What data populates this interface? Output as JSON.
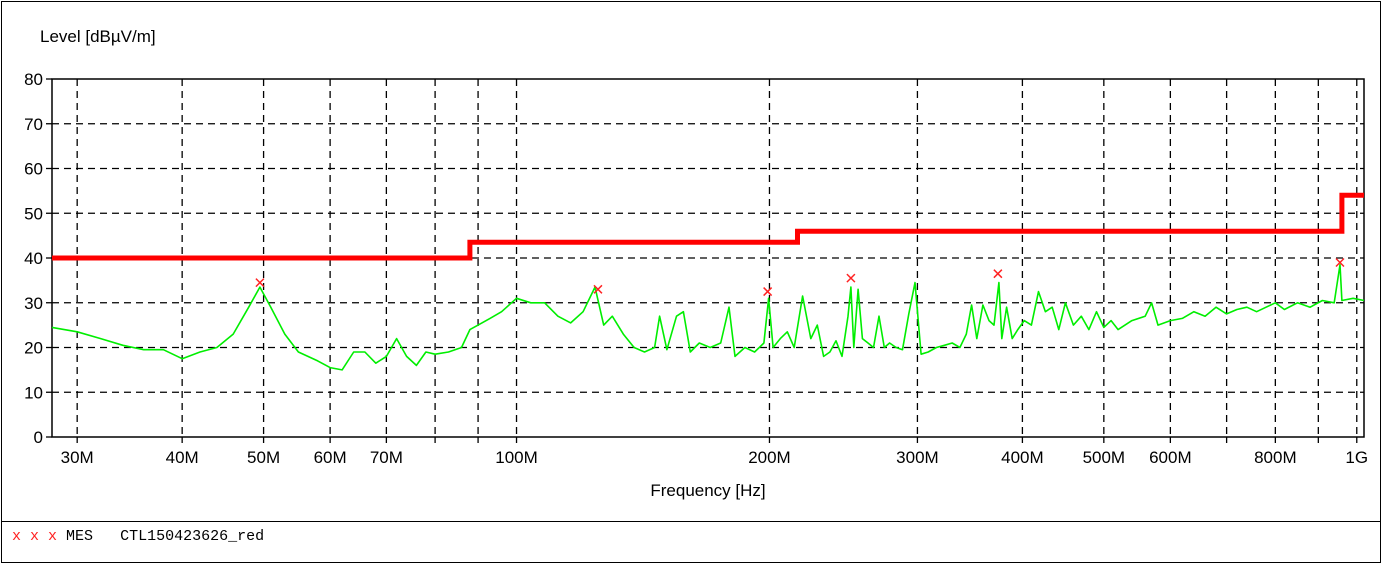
{
  "chart_data": {
    "type": "line",
    "ylabel": "Level [dBµV/m]",
    "xlabel": "Frequency [Hz]",
    "x_scale": "log",
    "xlim": [
      28000000,
      1020000000
    ],
    "ylim": [
      0,
      80
    ],
    "grid": true,
    "y_ticks": [
      "0",
      "10",
      "20",
      "30",
      "40",
      "50",
      "60",
      "70",
      "80"
    ],
    "x_tick_labels": [
      {
        "f": 30000000,
        "label": "30M"
      },
      {
        "f": 40000000,
        "label": "40M"
      },
      {
        "f": 50000000,
        "label": "50M"
      },
      {
        "f": 60000000,
        "label": "60M"
      },
      {
        "f": 70000000,
        "label": "70M"
      },
      {
        "f": 100000000,
        "label": "100M"
      },
      {
        "f": 200000000,
        "label": "200M"
      },
      {
        "f": 300000000,
        "label": "300M"
      },
      {
        "f": 400000000,
        "label": "400M"
      },
      {
        "f": 500000000,
        "label": "500M"
      },
      {
        "f": 600000000,
        "label": "600M"
      },
      {
        "f": 800000000,
        "label": "800M"
      },
      {
        "f": 1000000000,
        "label": "1G"
      }
    ],
    "grid_x": [
      30000000,
      40000000,
      50000000,
      60000000,
      70000000,
      80000000,
      90000000,
      100000000,
      200000000,
      300000000,
      400000000,
      500000000,
      600000000,
      700000000,
      800000000,
      900000000,
      1000000000
    ],
    "colors": {
      "limit": "#ff0000",
      "trace": "#00ee00",
      "markers": "#ff2222"
    },
    "series": [
      {
        "kind": "limit",
        "points": [
          [
            28000000,
            40
          ],
          [
            88000000,
            40
          ],
          [
            88000000,
            43.5
          ],
          [
            216000000,
            43.5
          ],
          [
            216000000,
            46
          ],
          [
            960000000,
            46
          ],
          [
            960000000,
            54
          ],
          [
            1020000000,
            54
          ]
        ]
      },
      {
        "kind": "measurement",
        "points": [
          [
            28000000,
            24.5
          ],
          [
            30000000,
            23.5
          ],
          [
            32000000,
            22
          ],
          [
            34000000,
            20.5
          ],
          [
            36000000,
            19.5
          ],
          [
            38000000,
            19.5
          ],
          [
            40000000,
            17.5
          ],
          [
            42000000,
            19
          ],
          [
            44000000,
            20
          ],
          [
            46000000,
            23
          ],
          [
            48000000,
            29
          ],
          [
            49500000,
            33.5
          ],
          [
            51000000,
            29
          ],
          [
            53000000,
            23
          ],
          [
            55000000,
            19
          ],
          [
            58000000,
            17
          ],
          [
            60000000,
            15.5
          ],
          [
            62000000,
            15
          ],
          [
            64000000,
            19
          ],
          [
            66000000,
            19
          ],
          [
            68000000,
            16.5
          ],
          [
            70000000,
            18
          ],
          [
            72000000,
            22
          ],
          [
            74000000,
            18
          ],
          [
            76000000,
            16
          ],
          [
            78000000,
            19
          ],
          [
            80000000,
            18.5
          ],
          [
            83000000,
            19
          ],
          [
            86000000,
            20
          ],
          [
            88000000,
            24
          ],
          [
            90000000,
            25
          ],
          [
            93000000,
            26.5
          ],
          [
            96000000,
            28
          ],
          [
            100000000,
            31
          ],
          [
            104000000,
            30
          ],
          [
            108000000,
            30
          ],
          [
            112000000,
            27
          ],
          [
            116000000,
            25.5
          ],
          [
            120000000,
            28
          ],
          [
            124000000,
            33.5
          ],
          [
            127000000,
            25
          ],
          [
            130000000,
            27
          ],
          [
            134000000,
            23
          ],
          [
            138000000,
            20
          ],
          [
            142000000,
            19
          ],
          [
            146000000,
            20
          ],
          [
            148000000,
            27
          ],
          [
            151000000,
            19.5
          ],
          [
            155000000,
            27
          ],
          [
            158000000,
            28
          ],
          [
            161000000,
            19
          ],
          [
            165000000,
            21
          ],
          [
            170000000,
            20
          ],
          [
            175000000,
            21
          ],
          [
            179000000,
            29
          ],
          [
            182000000,
            18
          ],
          [
            187000000,
            20
          ],
          [
            192000000,
            19
          ],
          [
            197000000,
            21
          ],
          [
            199500000,
            31
          ],
          [
            202000000,
            20
          ],
          [
            206000000,
            22
          ],
          [
            210000000,
            23.5
          ],
          [
            214000000,
            20
          ],
          [
            219000000,
            31.5
          ],
          [
            224000000,
            22
          ],
          [
            228000000,
            25
          ],
          [
            232000000,
            18
          ],
          [
            236000000,
            19
          ],
          [
            240000000,
            21.5
          ],
          [
            244000000,
            18
          ],
          [
            248000000,
            27
          ],
          [
            250000000,
            33.5
          ],
          [
            252000000,
            20
          ],
          [
            255000000,
            33
          ],
          [
            258000000,
            22
          ],
          [
            262000000,
            21
          ],
          [
            266000000,
            20
          ],
          [
            270000000,
            27
          ],
          [
            274000000,
            20
          ],
          [
            278000000,
            21
          ],
          [
            283000000,
            20
          ],
          [
            288000000,
            19.5
          ],
          [
            293000000,
            27.5
          ],
          [
            298000000,
            34.5
          ],
          [
            303000000,
            18.5
          ],
          [
            309000000,
            19
          ],
          [
            316000000,
            20
          ],
          [
            323000000,
            20.5
          ],
          [
            330000000,
            21
          ],
          [
            337000000,
            20
          ],
          [
            343000000,
            23
          ],
          [
            348000000,
            29.5
          ],
          [
            353000000,
            22
          ],
          [
            359000000,
            29.5
          ],
          [
            365000000,
            26
          ],
          [
            370000000,
            25
          ],
          [
            375000000,
            34.5
          ],
          [
            378000000,
            22
          ],
          [
            383000000,
            29
          ],
          [
            389000000,
            22
          ],
          [
            395000000,
            24
          ],
          [
            402000000,
            26
          ],
          [
            410000000,
            25
          ],
          [
            418000000,
            32.5
          ],
          [
            426000000,
            28
          ],
          [
            434000000,
            29
          ],
          [
            442000000,
            24
          ],
          [
            450000000,
            30
          ],
          [
            460000000,
            25
          ],
          [
            470000000,
            27
          ],
          [
            480000000,
            24
          ],
          [
            490000000,
            28
          ],
          [
            500000000,
            24.5
          ],
          [
            510000000,
            26
          ],
          [
            520000000,
            24
          ],
          [
            540000000,
            26
          ],
          [
            560000000,
            27
          ],
          [
            570000000,
            30
          ],
          [
            580000000,
            25
          ],
          [
            600000000,
            26
          ],
          [
            620000000,
            26.5
          ],
          [
            640000000,
            28
          ],
          [
            660000000,
            27
          ],
          [
            680000000,
            29
          ],
          [
            700000000,
            27.5
          ],
          [
            720000000,
            28.5
          ],
          [
            740000000,
            29
          ],
          [
            760000000,
            28
          ],
          [
            780000000,
            29
          ],
          [
            800000000,
            30
          ],
          [
            820000000,
            28.5
          ],
          [
            850000000,
            30
          ],
          [
            880000000,
            29
          ],
          [
            910000000,
            30.5
          ],
          [
            940000000,
            30
          ],
          [
            955000000,
            38.5
          ],
          [
            960000000,
            30.5
          ],
          [
            990000000,
            31
          ],
          [
            1020000000,
            30.5
          ]
        ]
      }
    ],
    "markers": [
      {
        "f": 49500000,
        "level": 34.5
      },
      {
        "f": 125000000,
        "level": 33
      },
      {
        "f": 199000000,
        "level": 32.5
      },
      {
        "f": 250000000,
        "level": 35.5
      },
      {
        "f": 374000000,
        "level": 36.5
      },
      {
        "f": 955000000,
        "level": 39
      }
    ]
  },
  "legend": {
    "marks": "x x x",
    "label": "MES",
    "name": "CTL150423626_red"
  }
}
